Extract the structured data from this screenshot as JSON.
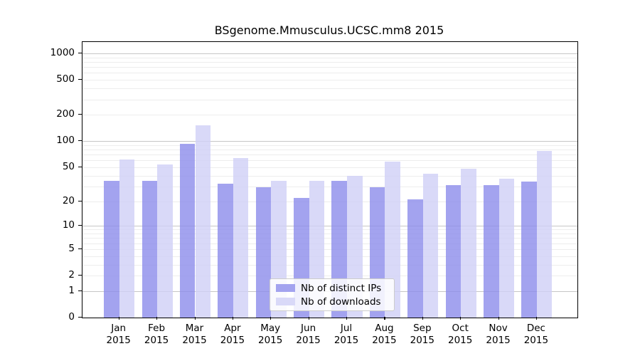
{
  "title": "BSgenome.Mmusculus.UCSC.mm8 2015",
  "chart_data": {
    "type": "bar",
    "title": "BSgenome.Mmusculus.UCSC.mm8 2015",
    "categories": [
      "Jan",
      "Feb",
      "Mar",
      "Apr",
      "May",
      "Jun",
      "Jul",
      "Aug",
      "Sep",
      "Oct",
      "Nov",
      "Dec"
    ],
    "category_year": "2015",
    "series": [
      {
        "name": "Nb of distinct IPs",
        "color": "#a3a3ef",
        "fill": "rgba(140,140,235,0.8)",
        "values": [
          35,
          35,
          93,
          32,
          29,
          22,
          35,
          29,
          21,
          31,
          31,
          34
        ]
      },
      {
        "name": "Nb of downloads",
        "color": "#d9d9f8",
        "fill": "rgba(208,208,246,0.8)",
        "values": [
          61,
          54,
          152,
          64,
          35,
          35,
          40,
          58,
          42,
          48,
          37,
          77
        ]
      }
    ],
    "y_axis": {
      "scale": "log1p",
      "tick_labels": [
        "1000",
        "500",
        "200",
        "100",
        "50",
        "20",
        "10",
        "5",
        "2",
        "1",
        "0"
      ],
      "tick_values": [
        1000,
        500,
        200,
        100,
        50,
        20,
        10,
        5,
        2,
        1,
        0
      ],
      "major_gridline_values": [
        1,
        10,
        100,
        1000
      ],
      "minor_gridline_bases": [
        1,
        10,
        100
      ]
    },
    "legend_position": "bottom-center",
    "grid": true
  }
}
